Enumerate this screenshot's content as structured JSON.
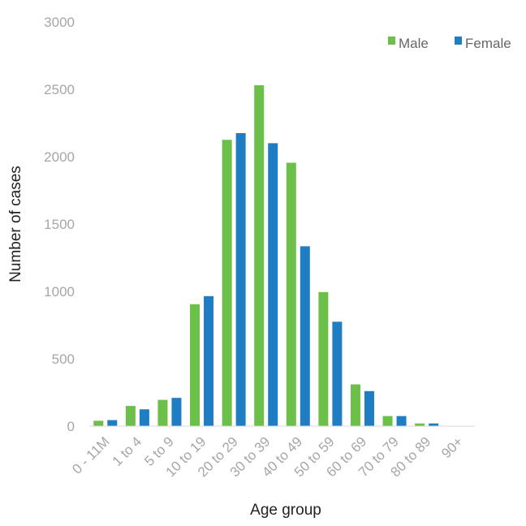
{
  "chart_data": {
    "type": "bar",
    "title": "",
    "xlabel": "Age group",
    "ylabel": "Number of cases",
    "categories": [
      "0 - 11M",
      "1 to 4",
      "5 to 9",
      "10 to 19",
      "20 to 29",
      "30 to 39",
      "40 to 49",
      "50 to 59",
      "60 to 69",
      "70 to 79",
      "80 to 89",
      "90+"
    ],
    "series": [
      {
        "name": "Male",
        "color": "#6cc04a",
        "values": [
          40,
          150,
          195,
          905,
          2125,
          2530,
          1955,
          995,
          310,
          75,
          20,
          0
        ]
      },
      {
        "name": "Female",
        "color": "#1f7ec3",
        "values": [
          45,
          125,
          210,
          965,
          2175,
          2100,
          1335,
          775,
          260,
          75,
          20,
          0
        ]
      }
    ],
    "ylim": [
      0,
      3000
    ],
    "yticks": [
      0,
      500,
      1000,
      1500,
      2000,
      2500,
      3000
    ],
    "grid": false,
    "legend_position": "top-right"
  }
}
